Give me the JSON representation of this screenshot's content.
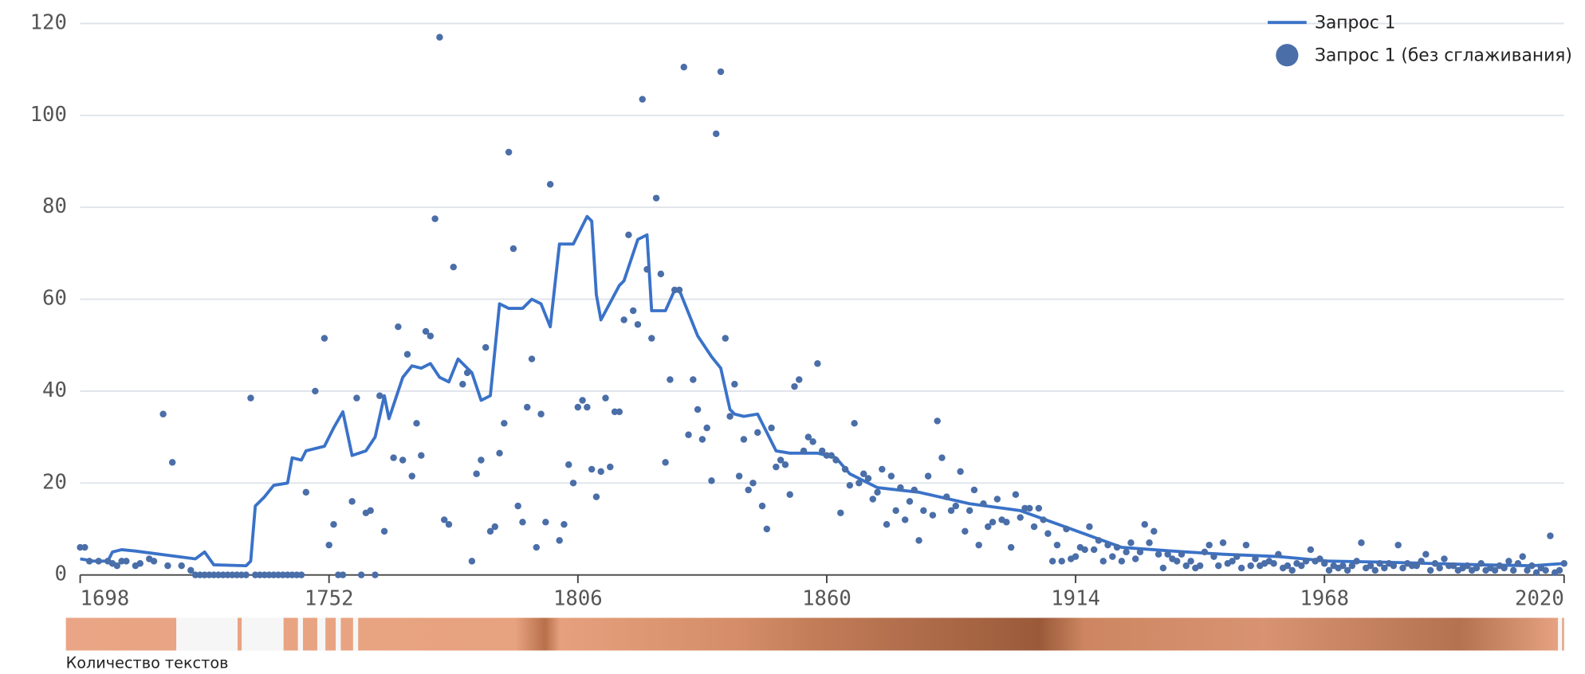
{
  "chart_data": {
    "type": "line",
    "xlim": [
      1698,
      2020
    ],
    "xticks": [
      1698,
      1752,
      1806,
      1860,
      1914,
      1968,
      2020
    ],
    "ylim": [
      0,
      120
    ],
    "yticks": [
      0,
      20,
      40,
      60,
      80,
      100,
      120
    ],
    "grid": true,
    "legend": "top-right",
    "strip_label": "Количество текстов",
    "series": [
      {
        "name": "Запрос 1",
        "kind": "line",
        "color": "#3a72c8",
        "x": [
          1698,
          1701,
          1704,
          1705,
          1707,
          1710,
          1723,
          1725,
          1727,
          1734,
          1735,
          1736,
          1738,
          1740,
          1743,
          1744,
          1746,
          1747,
          1751,
          1753,
          1755,
          1757,
          1760,
          1762,
          1764,
          1765,
          1768,
          1770,
          1772,
          1774,
          1776,
          1778,
          1780,
          1783,
          1785,
          1787,
          1789,
          1791,
          1794,
          1796,
          1798,
          1800,
          1802,
          1805,
          1807,
          1808,
          1809,
          1810,
          1811,
          1815,
          1816,
          1818,
          1819,
          1821,
          1822,
          1825,
          1827,
          1828,
          1830,
          1832,
          1835,
          1837,
          1839,
          1840,
          1842,
          1845,
          1846,
          1849,
          1852,
          1858,
          1862,
          1865,
          1871,
          1880,
          1891,
          1902,
          1913,
          1924,
          1935,
          1946,
          1958,
          1969,
          1980,
          1991,
          2002,
          2013,
          2020
        ],
        "values": [
          3.5,
          3,
          3,
          5,
          5.5,
          5.2,
          3.5,
          5,
          2.2,
          2,
          3,
          15,
          17,
          19.5,
          20,
          25.5,
          25,
          27,
          28,
          32,
          35.5,
          26,
          27,
          30,
          39,
          34,
          43,
          45.5,
          45,
          46,
          43,
          42,
          47,
          44,
          38,
          39,
          59,
          58,
          58,
          60,
          59,
          54,
          72,
          72,
          76,
          78,
          77,
          61,
          55.5,
          63,
          64,
          70,
          73,
          74,
          57.5,
          57.5,
          62,
          62,
          57,
          52,
          47.5,
          45,
          36,
          35,
          34.5,
          35,
          33,
          27,
          26.5,
          26.5,
          25.5,
          22,
          19,
          18,
          15.5,
          14,
          10,
          6,
          5.2,
          4.5,
          4,
          3,
          2.8,
          2.5,
          2.2,
          2,
          2.5
        ]
      },
      {
        "name": "Запрос 1 (без сглаживания)",
        "kind": "scatter",
        "color": "#4a6ea8",
        "x": [
          1698,
          1699,
          1700,
          1702,
          1704,
          1705,
          1706,
          1707,
          1708,
          1710,
          1711,
          1713,
          1714,
          1716,
          1717,
          1718,
          1720,
          1722,
          1723,
          1724,
          1725,
          1726,
          1727,
          1728,
          1729,
          1730,
          1731,
          1732,
          1733,
          1734,
          1735,
          1736,
          1737,
          1738,
          1739,
          1740,
          1741,
          1742,
          1743,
          1744,
          1745,
          1746,
          1747,
          1749,
          1751,
          1752,
          1753,
          1754,
          1755,
          1757,
          1758,
          1759,
          1760,
          1761,
          1762,
          1763,
          1764,
          1766,
          1767,
          1768,
          1769,
          1770,
          1771,
          1772,
          1773,
          1774,
          1775,
          1776,
          1777,
          1778,
          1779,
          1781,
          1782,
          1783,
          1784,
          1785,
          1786,
          1787,
          1788,
          1789,
          1790,
          1791,
          1792,
          1793,
          1794,
          1795,
          1796,
          1797,
          1798,
          1799,
          1800,
          1802,
          1803,
          1804,
          1805,
          1806,
          1807,
          1808,
          1809,
          1810,
          1811,
          1812,
          1813,
          1814,
          1815,
          1816,
          1817,
          1818,
          1819,
          1820,
          1821,
          1822,
          1823,
          1824,
          1825,
          1826,
          1827,
          1828,
          1829,
          1830,
          1831,
          1832,
          1833,
          1834,
          1835,
          1836,
          1837,
          1838,
          1839,
          1840,
          1841,
          1842,
          1843,
          1844,
          1845,
          1846,
          1847,
          1848,
          1849,
          1850,
          1851,
          1852,
          1853,
          1854,
          1855,
          1856,
          1857,
          1858,
          1859,
          1860,
          1861,
          1862,
          1863,
          1864,
          1865,
          1866,
          1867,
          1868,
          1869,
          1870,
          1871,
          1872,
          1873,
          1874,
          1875,
          1876,
          1877,
          1878,
          1879,
          1880,
          1881,
          1882,
          1883,
          1884,
          1885,
          1886,
          1887,
          1888,
          1889,
          1890,
          1891,
          1892,
          1893,
          1894,
          1895,
          1896,
          1897,
          1898,
          1899,
          1900,
          1901,
          1902,
          1903,
          1904,
          1905,
          1906,
          1907,
          1908,
          1909,
          1910,
          1911,
          1912,
          1913,
          1914,
          1915,
          1916,
          1917,
          1918,
          1919,
          1920,
          1921,
          1922,
          1923,
          1924,
          1925,
          1926,
          1927,
          1928,
          1929,
          1930,
          1931,
          1932,
          1933,
          1934,
          1935,
          1936,
          1937,
          1938,
          1939,
          1940,
          1941,
          1942,
          1943,
          1944,
          1945,
          1946,
          1947,
          1948,
          1949,
          1950,
          1951,
          1952,
          1953,
          1954,
          1955,
          1956,
          1957,
          1958,
          1959,
          1960,
          1961,
          1962,
          1963,
          1964,
          1965,
          1966,
          1967,
          1968,
          1969,
          1970,
          1971,
          1972,
          1973,
          1974,
          1975,
          1976,
          1977,
          1978,
          1979,
          1980,
          1981,
          1982,
          1983,
          1984,
          1985,
          1986,
          1987,
          1988,
          1989,
          1990,
          1991,
          1992,
          1993,
          1994,
          1995,
          1996,
          1997,
          1998,
          1999,
          2000,
          2001,
          2002,
          2003,
          2004,
          2005,
          2006,
          2007,
          2008,
          2009,
          2010,
          2011,
          2012,
          2013,
          2014,
          2015,
          2016,
          2017,
          2018,
          2019,
          2020
        ],
        "values": [
          6,
          6,
          3,
          3,
          3,
          2.5,
          2,
          3,
          3,
          2,
          2.5,
          3.5,
          3,
          35,
          2,
          24.5,
          2,
          1,
          0,
          0,
          0,
          0,
          0,
          0,
          0,
          0,
          0,
          0,
          0,
          0,
          38.5,
          0,
          0,
          0,
          0,
          0,
          0,
          0,
          0,
          0,
          0,
          0,
          18,
          40,
          51.5,
          6.5,
          11,
          0,
          0,
          16,
          38.5,
          0,
          13.5,
          14,
          0,
          39,
          9.5,
          25.5,
          54,
          25,
          48,
          21.5,
          33,
          26,
          53,
          52,
          77.5,
          117,
          12,
          11,
          67,
          41.5,
          44,
          3,
          22,
          25,
          49.5,
          9.5,
          10.5,
          26.5,
          33,
          92,
          71,
          15,
          11.5,
          36.5,
          47,
          6,
          35,
          11.5,
          85,
          7.5,
          11,
          24,
          20,
          36.5,
          38,
          36.5,
          23,
          17,
          22.5,
          38.5,
          23.5,
          35.5,
          35.5,
          55.5,
          74,
          57.5,
          54.5,
          103.5,
          66.5,
          51.5,
          82,
          65.5,
          24.5,
          42.5,
          62,
          62,
          110.5,
          30.5,
          42.5,
          36,
          29.5,
          32,
          20.5,
          96,
          109.5,
          51.5,
          34.5,
          41.5,
          21.5,
          29.5,
          18.5,
          20,
          31,
          15,
          10,
          32,
          23.5,
          25,
          24,
          17.5,
          41,
          42.5,
          27,
          30,
          29,
          46,
          27,
          26,
          26,
          25,
          13.5,
          23,
          19.5,
          33,
          20,
          22,
          21,
          16.5,
          18,
          23,
          11,
          21.5,
          14,
          19,
          12,
          16,
          18.5,
          7.5,
          14,
          21.5,
          13,
          33.5,
          25.5,
          17,
          14,
          15,
          22.5,
          9.5,
          14,
          18.5,
          6.5,
          15.5,
          10.5,
          11.5,
          16.5,
          12,
          11.5,
          6,
          17.5,
          12.5,
          14.5,
          14.5,
          10.5,
          14.5,
          12,
          9,
          3,
          6.5,
          3,
          10,
          3.5,
          4,
          6,
          5.5,
          10.5,
          5.5,
          7.5,
          3,
          6.5,
          4,
          6,
          3,
          5,
          7,
          3.5,
          5,
          11,
          7,
          9.5,
          4.5,
          1.5,
          4.5,
          3.5,
          3,
          4.5,
          2,
          3,
          1.5,
          2,
          5,
          6.5,
          4,
          2,
          7,
          2.5,
          3,
          4,
          1.5,
          6.5,
          2,
          3.5,
          2,
          2.5,
          3,
          2.5,
          4.5,
          1.5,
          2,
          1,
          2.5,
          2,
          3,
          5.5,
          3,
          3.5,
          2.5,
          1,
          2,
          1.5,
          2,
          1,
          2,
          3,
          7,
          1.5,
          2,
          1,
          2.5,
          1.5,
          2.5,
          2,
          6.5,
          1.5,
          2.5,
          2,
          2,
          3,
          4.5,
          1,
          2.5,
          1.5,
          3.5,
          2,
          2,
          1,
          1.5,
          2,
          1,
          1.5,
          2.5,
          1,
          1.5,
          1,
          2,
          1.5,
          3,
          1,
          2.5,
          4,
          1,
          2,
          0.5,
          1.5,
          1,
          8.5,
          0.5,
          1,
          2.5
        ]
      }
    ]
  }
}
